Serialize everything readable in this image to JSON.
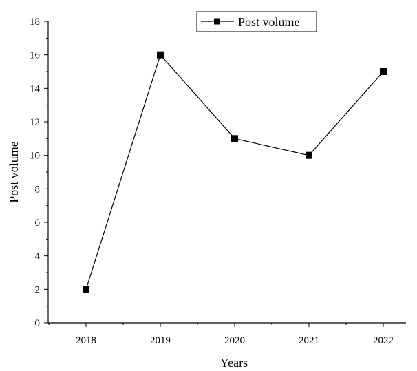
{
  "chart_data": {
    "type": "line",
    "title": "",
    "xlabel": "Years",
    "ylabel": "Post volume",
    "categories": [
      "2018",
      "2019",
      "2020",
      "2021",
      "2022"
    ],
    "series": [
      {
        "name": "Post volume",
        "values": [
          2,
          16,
          11,
          10,
          15
        ],
        "color": "#000000",
        "marker": "square"
      }
    ],
    "ylim": [
      0,
      18
    ],
    "yticks": [
      0,
      2,
      4,
      6,
      8,
      10,
      12,
      14,
      16,
      18
    ],
    "grid": false,
    "legend": "top-center"
  }
}
